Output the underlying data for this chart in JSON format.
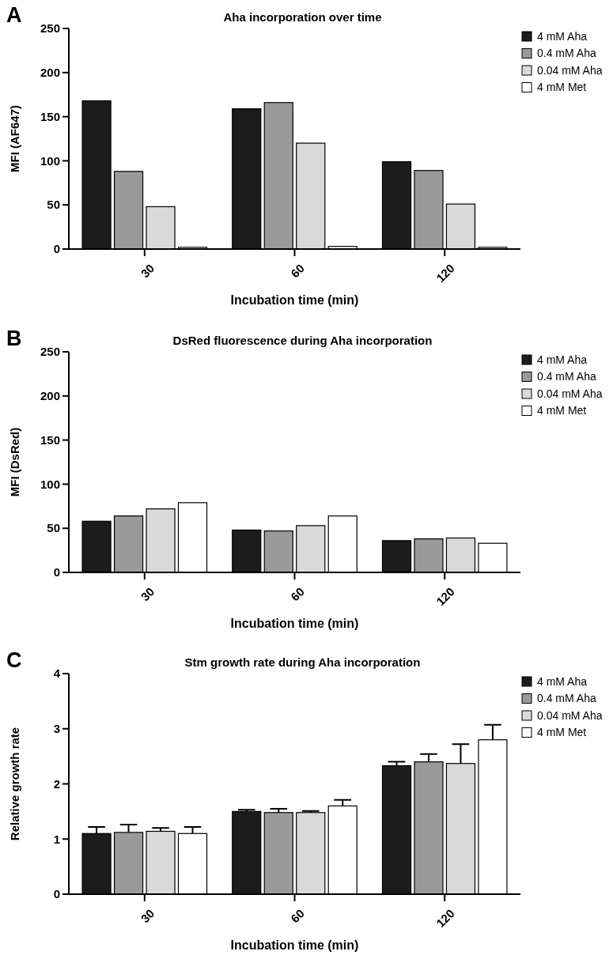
{
  "chart_data": [
    {
      "type": "bar",
      "title": "Aha incorporation over time",
      "annotations": [
        "A"
      ],
      "xlabel": "Incubation time (min)",
      "ylabel": "MFI (AF647)",
      "categories": [
        "30",
        "60",
        "120"
      ],
      "ylim": [
        0,
        250
      ],
      "yticks": [
        0,
        50,
        100,
        150,
        200,
        250
      ],
      "grid": false,
      "legend": "top right",
      "series": [
        {
          "name": "4 mM Aha",
          "color": "#1c1c1c",
          "values": [
            168,
            159,
            99
          ]
        },
        {
          "name": "0.4 mM Aha",
          "color": "#9a9a9a",
          "values": [
            88,
            166,
            89
          ]
        },
        {
          "name": "0.04 mM Aha",
          "color": "#d9d9d9",
          "values": [
            48,
            120,
            51
          ]
        },
        {
          "name": "4 mM Met",
          "color": "#ffffff",
          "values": [
            2,
            3,
            2
          ]
        }
      ]
    },
    {
      "type": "bar",
      "title": "DsRed fluorescence during Aha incorporation",
      "annotations": [
        "B"
      ],
      "xlabel": "Incubation time (min)",
      "ylabel": "MFI (DsRed)",
      "categories": [
        "30",
        "60",
        "120"
      ],
      "ylim": [
        0,
        250
      ],
      "yticks": [
        0,
        50,
        100,
        150,
        200,
        250
      ],
      "grid": false,
      "legend": "top right",
      "series": [
        {
          "name": "4 mM Aha",
          "color": "#1c1c1c",
          "values": [
            58,
            48,
            36
          ]
        },
        {
          "name": "0.4 mM Aha",
          "color": "#9a9a9a",
          "values": [
            64,
            47,
            38
          ]
        },
        {
          "name": "0.04 mM Aha",
          "color": "#d9d9d9",
          "values": [
            72,
            53,
            39
          ]
        },
        {
          "name": "4 mM Met",
          "color": "#ffffff",
          "values": [
            79,
            64,
            33
          ]
        }
      ]
    },
    {
      "type": "bar",
      "title": "Stm growth rate during Aha incorporation",
      "annotations": [
        "C"
      ],
      "xlabel": "Incubation time (min)",
      "ylabel": "Relative growth rate",
      "categories": [
        "30",
        "60",
        "120"
      ],
      "ylim": [
        0,
        4
      ],
      "yticks": [
        0,
        1,
        2,
        3,
        4
      ],
      "grid": false,
      "legend": "top right",
      "series": [
        {
          "name": "4 mM Aha",
          "color": "#1c1c1c",
          "values": [
            1.1,
            1.5,
            2.33
          ],
          "errors": [
            [
              1.1,
              1.22
            ],
            [
              1.5,
              1.53
            ],
            [
              2.33,
              2.4
            ]
          ]
        },
        {
          "name": "0.4 mM Aha",
          "color": "#9a9a9a",
          "values": [
            1.12,
            1.48,
            2.4
          ],
          "errors": [
            [
              1.12,
              1.26
            ],
            [
              1.48,
              1.55
            ],
            [
              2.4,
              2.54
            ]
          ]
        },
        {
          "name": "0.04 mM Aha",
          "color": "#d9d9d9",
          "values": [
            1.14,
            1.48,
            2.37
          ],
          "errors": [
            [
              1.14,
              1.2
            ],
            [
              1.48,
              1.51
            ],
            [
              2.37,
              2.72
            ]
          ]
        },
        {
          "name": "4 mM Met",
          "color": "#ffffff",
          "values": [
            1.1,
            1.6,
            2.8
          ],
          "errors": [
            [
              1.1,
              1.22
            ],
            [
              1.6,
              1.71
            ],
            [
              2.8,
              3.07
            ]
          ]
        }
      ]
    }
  ]
}
